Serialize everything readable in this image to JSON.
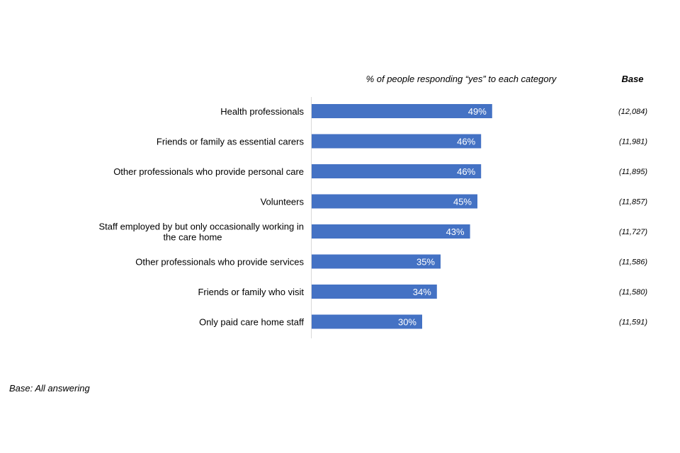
{
  "chart_data": {
    "type": "bar",
    "orientation": "horizontal",
    "subtitle": "% of people responding “yes” to each category",
    "base_header": "Base",
    "categories": [
      "Health professionals",
      "Friends or family as essential carers",
      "Other professionals who provide personal care",
      "Volunteers",
      "Staff employed by but only occasionally working in the care home",
      "Other professionals who provide services",
      "Friends or family who visit",
      "Only paid care home staff"
    ],
    "category_lines": [
      [
        "Health professionals"
      ],
      [
        "Friends or family as essential carers"
      ],
      [
        "Other professionals who provide personal care"
      ],
      [
        "Volunteers"
      ],
      [
        "Staff employed by but only occasionally working in",
        "the care home"
      ],
      [
        "Other professionals who provide services"
      ],
      [
        "Friends or family who visit"
      ],
      [
        "Only paid care home staff"
      ]
    ],
    "values": [
      49,
      46,
      46,
      45,
      43,
      35,
      34,
      30
    ],
    "value_labels": [
      "49%",
      "46%",
      "46%",
      "45%",
      "43%",
      "35%",
      "34%",
      "30%"
    ],
    "bases": [
      "(12,084)",
      "(11,981)",
      "(11,895)",
      "(11,857)",
      "(11,727)",
      "(11,586)",
      "(11,580)",
      "(11,591)"
    ],
    "xlim": [
      0,
      100
    ],
    "grid": false,
    "bar_color": "#4472c4",
    "axis_color": "#d9d9d9"
  },
  "footnote": "Base: All answering"
}
